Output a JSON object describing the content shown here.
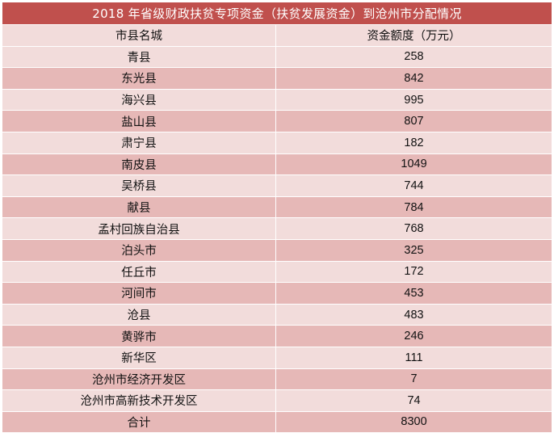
{
  "table": {
    "title": "2018 年省级财政扶贫专项资金（扶贫发展资金）到沧州市分配情况",
    "headers": [
      "市县名城",
      "资金额度（万元）"
    ],
    "rows": [
      {
        "name": "青县",
        "amount": "258"
      },
      {
        "name": "东光县",
        "amount": "842"
      },
      {
        "name": "海兴县",
        "amount": "995"
      },
      {
        "name": "盐山县",
        "amount": "807"
      },
      {
        "name": "肃宁县",
        "amount": "182"
      },
      {
        "name": "南皮县",
        "amount": "1049"
      },
      {
        "name": "吴桥县",
        "amount": "744"
      },
      {
        "name": "献县",
        "amount": "784"
      },
      {
        "name": "孟村回族自治县",
        "amount": "768"
      },
      {
        "name": "泊头市",
        "amount": "325"
      },
      {
        "name": "任丘市",
        "amount": "172"
      },
      {
        "name": "河间市",
        "amount": "453"
      },
      {
        "name": "沧县",
        "amount": "483"
      },
      {
        "name": "黄骅市",
        "amount": "246"
      },
      {
        "name": "新华区",
        "amount": "111"
      },
      {
        "name": "沧州市经济开发区",
        "amount": "7"
      },
      {
        "name": "沧州市高新技术开发区",
        "amount": "74"
      }
    ],
    "total": {
      "name": "合计",
      "amount": "8300"
    }
  },
  "colors": {
    "title_bg": "#c0504d",
    "row_light": "#f2dcdb",
    "row_dark": "#e6b8b7"
  }
}
